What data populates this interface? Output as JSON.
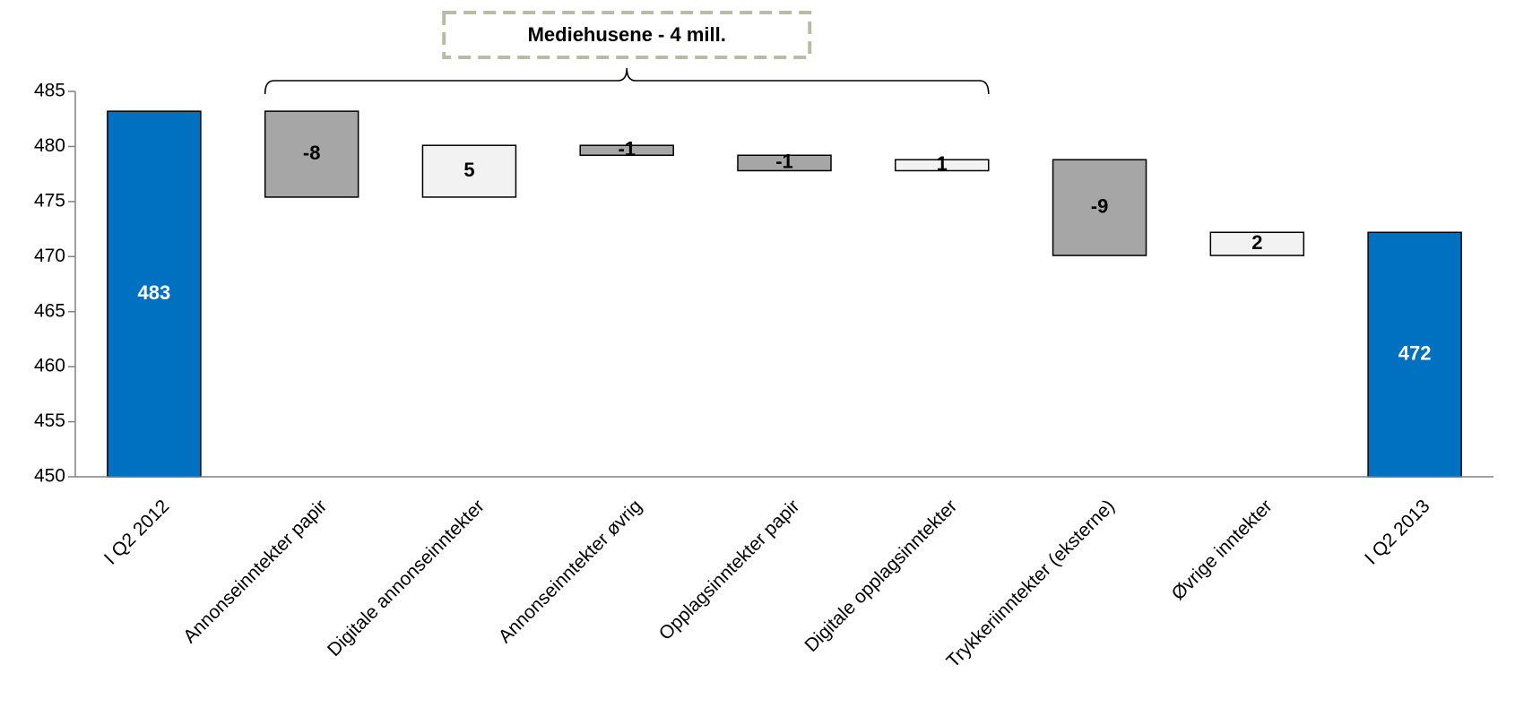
{
  "chart_data": {
    "type": "bar",
    "subtype": "waterfall",
    "title": "",
    "xlabel": "",
    "ylabel": "",
    "ylim": [
      450,
      485
    ],
    "yticks": [
      450,
      455,
      460,
      465,
      470,
      475,
      480,
      485
    ],
    "grid": false,
    "categories": [
      "I Q2 2012",
      "Annonseinntekter papir",
      "Digitale annonseinntekter",
      "Annonseinntekter øvrig",
      "Opplagsinntekter papir",
      "Digitale opplagsinntekter",
      "Trykkeriinntekter (eksterne)",
      "Øvrige inntekter",
      "I Q2 2013"
    ],
    "bars": [
      {
        "kind": "total",
        "start": 450,
        "end": 483.2,
        "label": "483"
      },
      {
        "kind": "decrease",
        "start": 483.2,
        "end": 475.4,
        "label": "-8"
      },
      {
        "kind": "increase",
        "start": 475.4,
        "end": 480.1,
        "label": "5"
      },
      {
        "kind": "decrease",
        "start": 480.1,
        "end": 479.2,
        "label": "-1"
      },
      {
        "kind": "decrease",
        "start": 479.2,
        "end": 477.8,
        "label": "-1"
      },
      {
        "kind": "increase",
        "start": 477.8,
        "end": 478.8,
        "label": "1"
      },
      {
        "kind": "decrease",
        "start": 478.8,
        "end": 470.1,
        "label": "-9"
      },
      {
        "kind": "increase",
        "start": 470.1,
        "end": 472.2,
        "label": "2"
      },
      {
        "kind": "total",
        "start": 450,
        "end": 472.2,
        "label": "472"
      }
    ],
    "colors": {
      "total": "#0070C0",
      "decrease": "#A6A6A6",
      "increase": "#F2F2F2",
      "outline": "#000000",
      "total_label": "#FFFFFF",
      "other_label": "#000000",
      "callout_border": "#B8BCA4"
    },
    "annotation": {
      "text": "Mediehusene - 4 mill.",
      "spans_categories": [
        1,
        5
      ]
    }
  }
}
